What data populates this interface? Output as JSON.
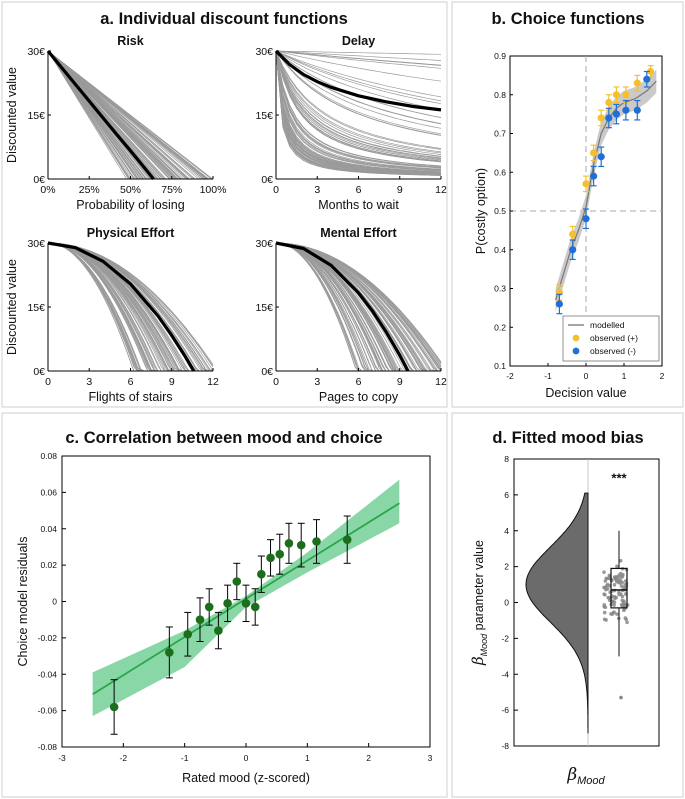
{
  "panels": {
    "a": "a. Individual discount functions",
    "b": "b. Choice functions",
    "c": "c. Correlation between mood and choice",
    "d": "d. Fitted mood bias"
  },
  "colors": {
    "gray_curves": "#9a9a9a",
    "mean_curve": "#000000",
    "observed_pos": "#f5c02e",
    "observed_neg": "#1f6fd6",
    "green_point": "#1c6e1c",
    "green_line": "#2aa64a",
    "green_band": "#62c98a",
    "violin": "#6b6b6b",
    "panel_border": "#cfcfcf"
  },
  "chart_data": [
    {
      "type": "line",
      "id": "risk",
      "title": "Risk",
      "xlabel": "Probability of losing",
      "ylabel": "Discounted value",
      "xticks": [
        "0%",
        "25%",
        "50%",
        "75%",
        "100%"
      ],
      "yticks": [
        "0€",
        "15€",
        "30€"
      ],
      "xlim": [
        0,
        100
      ],
      "ylim": [
        0,
        30
      ],
      "mean_curve": {
        "x": [
          0,
          10,
          20,
          30,
          40,
          50,
          60,
          64
        ],
        "y": [
          30,
          25.3,
          20.6,
          15.9,
          11.2,
          6.6,
          1.9,
          0
        ]
      },
      "individual_curves": "approx. 100 near-linear curves reaching 0€ between 47% and 100%"
    },
    {
      "type": "line",
      "id": "delay",
      "title": "Delay",
      "xlabel": "Months to wait",
      "ylabel": "",
      "xticks": [
        "0",
        "3",
        "6",
        "9",
        "12"
      ],
      "yticks": [
        "0€",
        "15€",
        "30€"
      ],
      "xlim": [
        0,
        12
      ],
      "ylim": [
        0,
        30
      ],
      "mean_curve": {
        "x": [
          0,
          1,
          2,
          3,
          4,
          6,
          8,
          10,
          12
        ],
        "y": [
          30,
          26.8,
          24.5,
          22.8,
          21.5,
          19.5,
          18.1,
          17.0,
          16.2
        ]
      },
      "individual_curves": "approx. 100 hyperbolic curves ending between 0€ and 29€ at 12 months"
    },
    {
      "type": "line",
      "id": "physical",
      "title": "Physical Effort",
      "xlabel": "Flights of stairs",
      "ylabel": "Discounted value",
      "xticks": [
        "0",
        "3",
        "6",
        "9",
        "12"
      ],
      "yticks": [
        "0€",
        "15€",
        "30€"
      ],
      "xlim": [
        0,
        12
      ],
      "ylim": [
        0,
        30
      ],
      "mean_curve": {
        "x": [
          0,
          2,
          4,
          6,
          8,
          9,
          10,
          10.6
        ],
        "y": [
          30,
          28.9,
          25.7,
          20.4,
          12.9,
          8.3,
          3.3,
          0
        ]
      },
      "individual_curves": "approx. 100 concave curves reaching 0€ between 6 and 12 flights"
    },
    {
      "type": "line",
      "id": "mental",
      "title": "Mental Effort",
      "xlabel": "Pages to copy",
      "ylabel": "",
      "xticks": [
        "0",
        "3",
        "6",
        "9",
        "12"
      ],
      "yticks": [
        "0€",
        "15€",
        "30€"
      ],
      "xlim": [
        0,
        12
      ],
      "ylim": [
        0,
        30
      ],
      "mean_curve": {
        "x": [
          0,
          2,
          4,
          6,
          7,
          8,
          9,
          9.6
        ],
        "y": [
          30,
          28.7,
          24.8,
          18.3,
          14.1,
          9.2,
          3.7,
          0
        ]
      },
      "individual_curves": "approx. 100 concave curves reaching 0€ between 5.5 and 12 pages"
    },
    {
      "type": "scatter",
      "id": "choice",
      "title": "Choice functions",
      "xlabel": "Decision value",
      "ylabel": "P(costly option)",
      "xlim": [
        -2,
        2
      ],
      "ylim": [
        0.1,
        0.9
      ],
      "xticks": [
        "-2",
        "-1",
        "0",
        "1",
        "2"
      ],
      "yticks": [
        "0.1",
        "0.2",
        "0.3",
        "0.4",
        "0.5",
        "0.6",
        "0.7",
        "0.8",
        "0.9"
      ],
      "legend": [
        "modelled",
        "observed (+)",
        "observed (-)"
      ],
      "legend_position": "bottom-right",
      "series": [
        {
          "name": "observed (+)",
          "x": [
            -0.7,
            -0.35,
            0.0,
            0.2,
            0.4,
            0.6,
            0.8,
            1.05,
            1.35,
            1.7
          ],
          "y": [
            0.29,
            0.44,
            0.57,
            0.65,
            0.74,
            0.78,
            0.8,
            0.8,
            0.83,
            0.86
          ],
          "err": [
            0.02,
            0.02,
            0.02,
            0.02,
            0.02,
            0.02,
            0.02,
            0.02,
            0.02,
            0.015
          ]
        },
        {
          "name": "observed (-)",
          "x": [
            -0.7,
            -0.35,
            0.0,
            0.2,
            0.4,
            0.6,
            0.8,
            1.05,
            1.35,
            1.6
          ],
          "y": [
            0.26,
            0.4,
            0.48,
            0.59,
            0.64,
            0.74,
            0.75,
            0.76,
            0.76,
            0.84
          ],
          "err": [
            0.025,
            0.025,
            0.025,
            0.025,
            0.025,
            0.025,
            0.025,
            0.025,
            0.025,
            0.02
          ]
        },
        {
          "name": "modelled",
          "x": [
            -0.8,
            -0.4,
            -0.2,
            0.0,
            0.2,
            0.4,
            0.6,
            0.8,
            1.0,
            1.3,
            1.6,
            1.85
          ],
          "y": [
            0.27,
            0.4,
            0.45,
            0.51,
            0.62,
            0.7,
            0.74,
            0.765,
            0.78,
            0.79,
            0.81,
            0.835
          ]
        }
      ]
    },
    {
      "type": "scatter",
      "id": "mood_corr",
      "title": "Correlation between mood and choice",
      "xlabel": "Rated mood (z-scored)",
      "ylabel": "Choice model residuals",
      "xlim": [
        -3,
        3
      ],
      "ylim": [
        -0.08,
        0.08
      ],
      "xticks": [
        "-3",
        "-2",
        "-1",
        "0",
        "1",
        "2",
        "3"
      ],
      "yticks": [
        "-0.08",
        "-0.06",
        "-0.04",
        "-0.02",
        "0",
        "0.02",
        "0.04",
        "0.06",
        "0.08"
      ],
      "points": {
        "x": [
          -2.15,
          -1.25,
          -0.95,
          -0.75,
          -0.6,
          -0.45,
          -0.3,
          -0.15,
          0.0,
          0.15,
          0.25,
          0.4,
          0.55,
          0.7,
          0.9,
          1.15,
          1.65
        ],
        "y": [
          -0.058,
          -0.028,
          -0.018,
          -0.01,
          -0.003,
          -0.016,
          -0.001,
          0.011,
          -0.001,
          -0.003,
          0.015,
          0.024,
          0.026,
          0.032,
          0.031,
          0.033,
          0.034
        ],
        "err": [
          0.015,
          0.014,
          0.012,
          0.012,
          0.01,
          0.01,
          0.01,
          0.01,
          0.01,
          0.01,
          0.01,
          0.01,
          0.011,
          0.011,
          0.012,
          0.012,
          0.013
        ]
      },
      "fit": {
        "x": [
          -2.5,
          2.5
        ],
        "y": [
          -0.051,
          0.054
        ]
      },
      "ci_upper": {
        "x": [
          -2.5,
          -1.0,
          0.0,
          1.0,
          2.5
        ],
        "y": [
          -0.039,
          -0.016,
          0.003,
          0.027,
          0.067
        ]
      },
      "ci_lower": {
        "x": [
          -2.5,
          -1.0,
          0.0,
          1.0,
          2.5
        ],
        "y": [
          -0.063,
          -0.036,
          -0.003,
          0.016,
          0.043
        ]
      }
    },
    {
      "type": "violin",
      "id": "mood_bias",
      "title": "Fitted mood bias",
      "ylabel_symbol": "β",
      "ylabel_sub": "Mood",
      "ylabel_rest": " parameter value",
      "xlabel_symbol": "β",
      "xlabel_sub": "Mood",
      "ylim": [
        -8,
        8
      ],
      "yticks": [
        "-8",
        "-6",
        "-4",
        "-2",
        "0",
        "2",
        "4",
        "6",
        "8"
      ],
      "significance": "***",
      "box": {
        "q1": -0.3,
        "median": 0.7,
        "q3": 1.9,
        "whisker_low": -3.0,
        "whisker_high": 4.0
      },
      "outlier": -5.3,
      "density_peak": 1.0,
      "range": [
        -7.3,
        6.1
      ]
    }
  ]
}
